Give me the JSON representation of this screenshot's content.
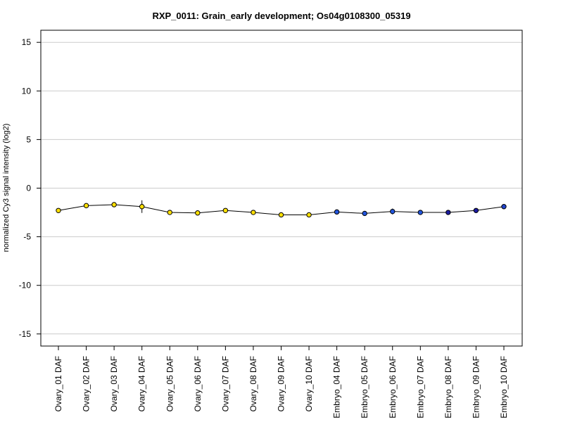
{
  "chart_data": {
    "type": "line",
    "title": "RXP_0011: Grain_early development; Os04g0108300_05319",
    "xlabel": "",
    "ylabel": "normalized Cy3 signal intensity (log2)",
    "ylim": [
      -16,
      16
    ],
    "yticks": [
      15,
      10,
      5,
      0,
      -5,
      -10,
      -15
    ],
    "grid": true,
    "categories": [
      "Ovary_01 DAF",
      "Ovary_02 DAF",
      "Ovary_03 DAF",
      "Ovary_04 DAF",
      "Ovary_05 DAF",
      "Ovary_06 DAF",
      "Ovary_07 DAF",
      "Ovary_08 DAF",
      "Ovary_09 DAF",
      "Ovary_10 DAF",
      "Embryo_04 DAF",
      "Embryo_05 DAF",
      "Embryo_06 DAF",
      "Embryo_07 DAF",
      "Embryo_08 DAF",
      "Embryo_09 DAF",
      "Embryo_10 DAF"
    ],
    "values": [
      -2.3,
      -1.8,
      -1.7,
      -1.9,
      -2.5,
      -2.55,
      -2.3,
      -2.5,
      -2.75,
      -2.75,
      -2.45,
      -2.6,
      -2.4,
      -2.5,
      -2.5,
      -2.3,
      -1.9
    ],
    "error": [
      0.1,
      0.1,
      0.1,
      0.65,
      0.1,
      0.1,
      0.1,
      0.1,
      0.1,
      0.1,
      0.1,
      0.1,
      0.3,
      0.1,
      0.1,
      0.1,
      0.1
    ],
    "point_colors": [
      "#ffe000",
      "#ffe000",
      "#ffe000",
      "#ffe000",
      "#ffe000",
      "#ffe000",
      "#ffe000",
      "#ffe000",
      "#ffe000",
      "#ffe000",
      "#2255dd",
      "#2255dd",
      "#2255dd",
      "#2255dd",
      "#1a1aa0",
      "#1a1aa0",
      "#2244cc"
    ],
    "line_color": "#000000",
    "grid_color": "#cccccc"
  }
}
